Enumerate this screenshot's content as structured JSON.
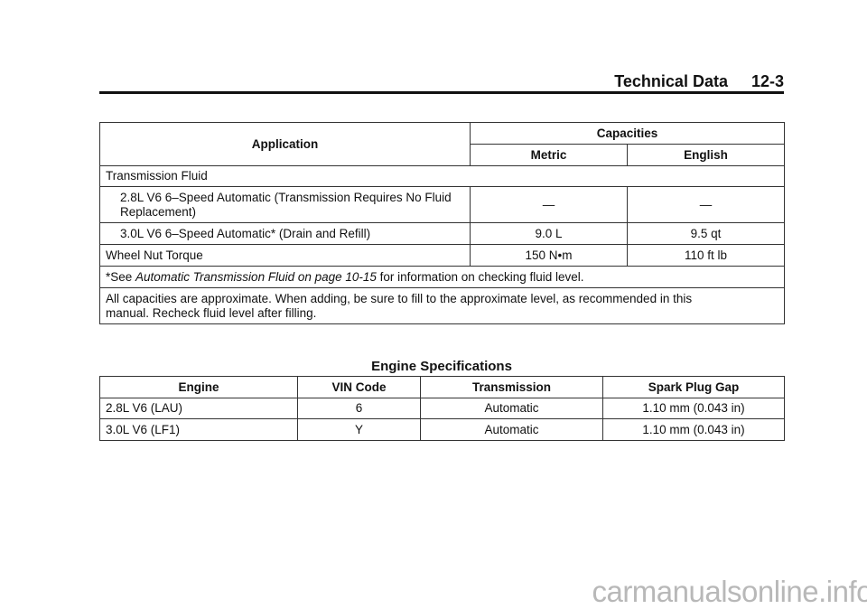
{
  "header": {
    "section": "Technical Data",
    "page": "12-3"
  },
  "capacities_table": {
    "col_application": "Application",
    "col_capacities": "Capacities",
    "col_metric": "Metric",
    "col_english": "English",
    "group_transmission": "Transmission Fluid",
    "rows": [
      {
        "application": "2.8L V6 6–Speed Automatic (Transmission Requires No Fluid Replacement)",
        "metric": "—",
        "english": "—"
      },
      {
        "application": "3.0L V6 6–Speed Automatic* (Drain and Refill)",
        "metric": "9.0 L",
        "english": "9.5 qt"
      }
    ],
    "wheel_nut": {
      "application": "Wheel Nut Torque",
      "metric": "150 N•m",
      "english": "110 ft lb"
    },
    "footnote": {
      "prefix": "*See ",
      "link": "Automatic Transmission Fluid on page 10-15",
      "suffix": " for information on checking fluid level."
    },
    "note": "All capacities are approximate. When adding, be sure to fill to the approximate level, as recommended in this manual. Recheck fluid level after filling."
  },
  "engine_table": {
    "title": "Engine Specifications",
    "columns": [
      "Engine",
      "VIN Code",
      "Transmission",
      "Spark Plug Gap"
    ],
    "rows": [
      [
        "2.8L V6 (LAU)",
        "6",
        "Automatic",
        "1.10 mm (0.043 in)"
      ],
      [
        "3.0L V6 (LF1)",
        "Y",
        "Automatic",
        "1.10 mm (0.043 in)"
      ]
    ]
  },
  "watermark": "carmanualsonline.info"
}
